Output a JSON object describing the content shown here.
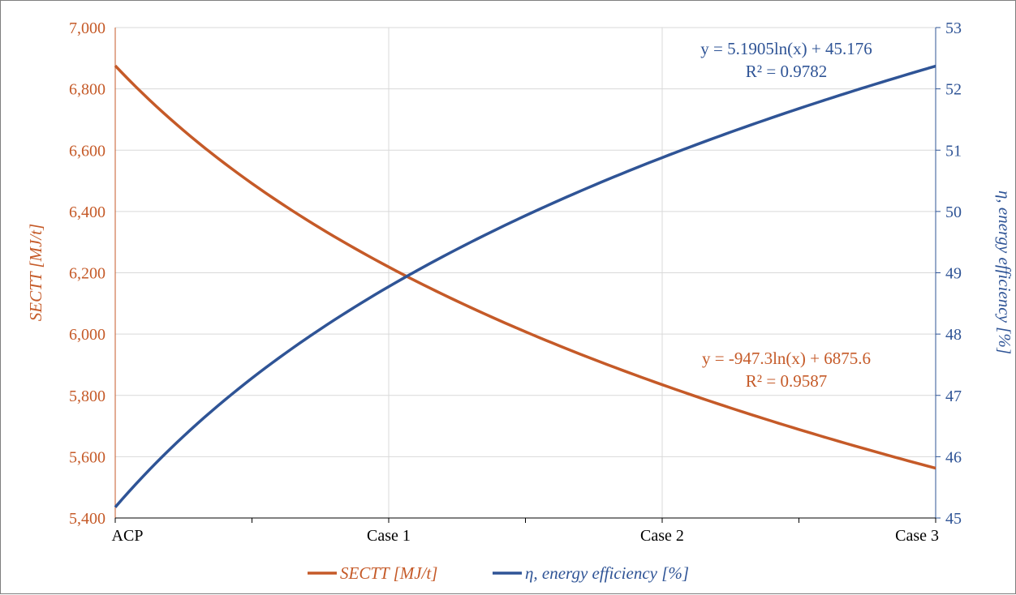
{
  "chart_data": {
    "type": "line",
    "categories": [
      "ACP",
      "Case 1",
      "Case 2",
      "Case 3"
    ],
    "y_left": {
      "label": "SECTT [MJ/t]",
      "range": [
        5400,
        7000
      ],
      "ticks": [
        "5,400",
        "5,600",
        "5,800",
        "6,000",
        "6,200",
        "6,400",
        "6,600",
        "6,800",
        "7,000"
      ],
      "color": "#C55A28"
    },
    "y_right": {
      "label": "η, energy efficiency [%]",
      "range": [
        45,
        53
      ],
      "ticks": [
        "45",
        "46",
        "47",
        "48",
        "49",
        "50",
        "51",
        "52",
        "53"
      ],
      "color": "#2F5496"
    },
    "series": [
      {
        "name": "SECTT [MJ/t]",
        "axis": "left",
        "color": "#C55A28",
        "trend": {
          "type": "log",
          "a": -947.3,
          "b": 6875.6
        },
        "values": [
          6875.6,
          6219.0,
          5835.0,
          5563.0
        ]
      },
      {
        "name": "η, energy efficiency [%]",
        "axis": "right",
        "color": "#2F5496",
        "trend": {
          "type": "log",
          "a": 5.1905,
          "b": 45.176
        },
        "values": [
          45.18,
          48.77,
          50.88,
          52.37
        ]
      }
    ],
    "annotations": [
      {
        "series": 1,
        "equation": "y = 5.1905ln(x) + 45.176",
        "r2": "R² = 0.9782"
      },
      {
        "series": 0,
        "equation": "y = -947.3ln(x) + 6875.6",
        "r2": "R² = 0.9587"
      }
    ],
    "grid": true,
    "legend_position": "bottom"
  }
}
